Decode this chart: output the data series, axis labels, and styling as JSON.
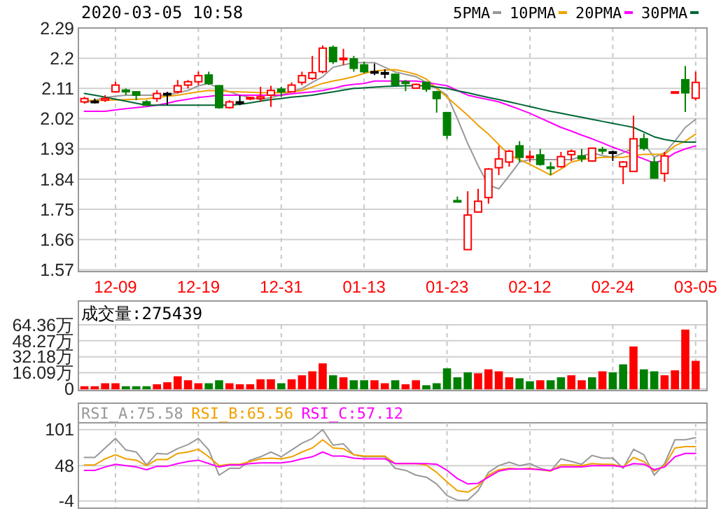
{
  "chart_data": [
    {
      "type": "candlestick",
      "title": "2020-03-05 10:58",
      "categories": [
        null,
        null,
        null,
        "12-09",
        null,
        null,
        null,
        null,
        null,
        null,
        null,
        "12-19",
        null,
        null,
        null,
        null,
        null,
        null,
        null,
        "12-31",
        null,
        null,
        null,
        null,
        null,
        null,
        null,
        "01-13",
        null,
        null,
        null,
        null,
        null,
        null,
        null,
        "01-23",
        null,
        null,
        null,
        null,
        null,
        null,
        null,
        "02-12",
        null,
        null,
        null,
        null,
        null,
        null,
        null,
        "02-24",
        null,
        null,
        null,
        null,
        null,
        null,
        null,
        "03-05"
      ],
      "ohlc": [
        [
          2.07,
          2.085,
          2.065,
          2.08
        ],
        [
          2.072,
          2.08,
          2.065,
          2.072
        ],
        [
          2.075,
          2.09,
          2.07,
          2.08
        ],
        [
          2.1,
          2.13,
          2.097,
          2.12
        ],
        [
          2.105,
          2.11,
          2.09,
          2.1
        ],
        [
          2.1,
          2.1,
          2.075,
          2.09
        ],
        [
          2.07,
          2.075,
          2.06,
          2.06
        ],
        [
          2.08,
          2.105,
          2.07,
          2.095
        ],
        [
          2.095,
          2.1,
          2.06,
          2.095
        ],
        [
          2.1,
          2.135,
          2.095,
          2.118
        ],
        [
          2.12,
          2.135,
          2.11,
          2.13
        ],
        [
          2.13,
          2.16,
          2.12,
          2.148
        ],
        [
          2.15,
          2.16,
          2.12,
          2.125
        ],
        [
          2.118,
          2.12,
          2.05,
          2.053
        ],
        [
          2.053,
          2.075,
          2.05,
          2.07
        ],
        [
          2.07,
          2.09,
          2.06,
          2.07
        ],
        [
          2.08,
          2.085,
          2.075,
          2.083
        ],
        [
          2.08,
          2.115,
          2.07,
          2.085
        ],
        [
          2.09,
          2.118,
          2.055,
          2.104
        ],
        [
          2.108,
          2.115,
          2.085,
          2.1
        ],
        [
          2.1,
          2.128,
          2.098,
          2.12
        ],
        [
          2.128,
          2.16,
          2.12,
          2.148
        ],
        [
          2.14,
          2.207,
          2.135,
          2.157
        ],
        [
          2.16,
          2.238,
          2.155,
          2.23
        ],
        [
          2.232,
          2.238,
          2.183,
          2.19
        ],
        [
          2.198,
          2.228,
          2.18,
          2.2
        ],
        [
          2.198,
          2.207,
          2.16,
          2.17
        ],
        [
          2.18,
          2.19,
          2.155,
          2.16
        ],
        [
          2.16,
          2.184,
          2.15,
          2.16
        ],
        [
          2.157,
          2.167,
          2.14,
          2.157
        ],
        [
          2.152,
          2.155,
          2.12,
          2.121
        ],
        [
          2.13,
          2.135,
          2.102,
          2.125
        ],
        [
          2.111,
          2.125,
          2.11,
          2.122
        ],
        [
          2.128,
          2.13,
          2.1,
          2.108
        ],
        [
          2.1,
          2.103,
          2.038,
          2.08
        ],
        [
          2.038,
          2.04,
          1.96,
          1.971
        ],
        [
          1.776,
          1.788,
          1.773,
          1.774
        ],
        [
          1.63,
          1.804,
          1.629,
          1.733
        ],
        [
          1.742,
          1.811,
          1.74,
          1.774
        ],
        [
          1.785,
          1.873,
          1.767,
          1.87
        ],
        [
          1.874,
          1.939,
          1.852,
          1.9
        ],
        [
          1.891,
          1.927,
          1.877,
          1.923
        ],
        [
          1.939,
          1.953,
          1.891,
          1.905
        ],
        [
          1.905,
          1.925,
          1.891,
          1.908
        ],
        [
          1.912,
          1.93,
          1.88,
          1.884
        ],
        [
          1.876,
          1.891,
          1.852,
          1.874
        ],
        [
          1.877,
          1.921,
          1.874,
          1.907
        ],
        [
          1.913,
          1.928,
          1.894,
          1.923
        ],
        [
          1.909,
          1.93,
          1.891,
          1.901
        ],
        [
          1.894,
          1.934,
          1.892,
          1.932
        ],
        [
          1.928,
          1.936,
          1.914,
          1.925
        ],
        [
          1.921,
          1.925,
          1.894,
          1.921
        ],
        [
          1.877,
          1.894,
          1.825,
          1.891
        ],
        [
          1.863,
          2.029,
          1.863,
          1.96
        ],
        [
          1.96,
          1.976,
          1.925,
          1.932
        ],
        [
          1.891,
          1.905,
          1.843,
          1.843
        ],
        [
          1.857,
          1.921,
          1.832,
          1.909
        ],
        [
          2.1,
          2.1,
          2.1,
          2.1
        ],
        [
          2.136,
          2.177,
          2.04,
          2.097
        ],
        [
          2.081,
          2.16,
          2.074,
          2.128
        ]
      ],
      "colors": [
        "#ff0000",
        "#000000",
        "#ff0000",
        "#ff0000",
        "#008000",
        "#008000",
        "#008000",
        "#ff0000",
        "#000000",
        "#ff0000",
        "#ff0000",
        "#ff0000",
        "#008000",
        "#008000",
        "#ff0000",
        "#000000",
        "#ff0000",
        "#ff0000",
        "#ff0000",
        "#008000",
        "#ff0000",
        "#ff0000",
        "#ff0000",
        "#ff0000",
        "#008000",
        "#ff0000",
        "#008000",
        "#008000",
        "#000000",
        "#000000",
        "#008000",
        "#008000",
        "#ff0000",
        "#008000",
        "#008000",
        "#008000",
        "#008000",
        "#ff0000",
        "#ff0000",
        "#ff0000",
        "#ff0000",
        "#ff0000",
        "#008000",
        "#ff0000",
        "#008000",
        "#008000",
        "#ff0000",
        "#ff0000",
        "#008000",
        "#ff0000",
        "#008000",
        "#000000",
        "#ff0000",
        "#ff0000",
        "#008000",
        "#008000",
        "#ff0000",
        "#ff0000",
        "#008000",
        "#ff0000"
      ],
      "series": [
        {
          "name": "5PMA",
          "type": "line",
          "color": "#999999",
          "values": [
            2.067,
            2.075,
            2.083,
            2.087,
            2.09,
            2.09,
            2.09,
            2.09,
            2.09,
            2.097,
            2.104,
            2.118,
            2.125,
            2.11,
            2.1,
            2.09,
            2.083,
            2.077,
            2.083,
            2.09,
            2.1,
            2.11,
            2.128,
            2.145,
            2.173,
            2.18,
            2.187,
            2.187,
            2.187,
            2.173,
            2.159,
            2.152,
            2.145,
            2.128,
            2.11,
            2.09,
            2.02,
            1.946,
            1.88,
            1.822,
            1.811,
            1.85,
            1.891,
            1.898,
            1.898,
            1.898,
            1.898,
            1.898,
            1.908,
            1.918,
            1.91,
            1.905,
            1.918,
            1.932,
            1.946,
            1.905,
            1.918,
            1.953,
            1.994,
            2.018
          ]
        },
        {
          "name": "10PMA",
          "type": "line",
          "color": "#f0a000",
          "values": [
            2.073,
            2.074,
            2.075,
            2.076,
            2.077,
            2.078,
            2.079,
            2.083,
            2.087,
            2.09,
            2.095,
            2.1,
            2.104,
            2.103,
            2.101,
            2.1,
            2.099,
            2.097,
            2.097,
            2.097,
            2.1,
            2.104,
            2.114,
            2.125,
            2.132,
            2.138,
            2.145,
            2.155,
            2.162,
            2.165,
            2.166,
            2.16,
            2.152,
            2.138,
            2.11,
            2.084,
            2.057,
            2.03,
            2.0,
            1.974,
            1.943,
            1.912,
            1.898,
            1.884,
            1.868,
            1.852,
            1.87,
            1.891,
            1.898,
            1.902,
            1.905,
            1.905,
            1.905,
            1.91,
            1.914,
            1.914,
            1.914,
            1.939,
            1.953,
            1.974
          ]
        },
        {
          "name": "20PMA",
          "type": "line",
          "color": "#ff00ff",
          "values": [
            2.042,
            2.042,
            2.042,
            2.046,
            2.05,
            2.053,
            2.056,
            2.06,
            2.066,
            2.073,
            2.078,
            2.083,
            2.086,
            2.09,
            2.09,
            2.09,
            2.09,
            2.09,
            2.09,
            2.09,
            2.094,
            2.097,
            2.1,
            2.104,
            2.11,
            2.118,
            2.122,
            2.125,
            2.132,
            2.132,
            2.132,
            2.132,
            2.132,
            2.128,
            2.123,
            2.118,
            2.104,
            2.09,
            2.083,
            2.077,
            2.07,
            2.059,
            2.048,
            2.036,
            2.022,
            2.008,
            1.994,
            1.983,
            1.971,
            1.96,
            1.948,
            1.935,
            1.924,
            1.912,
            1.9,
            1.888,
            1.898,
            1.918,
            1.93,
            1.939
          ]
        },
        {
          "name": "30PMA",
          "type": "line",
          "color": "#006633",
          "values": [
            2.095,
            2.09,
            2.084,
            2.078,
            2.072,
            2.066,
            2.06,
            2.06,
            2.06,
            2.06,
            2.06,
            2.06,
            2.06,
            2.06,
            2.06,
            2.063,
            2.067,
            2.072,
            2.077,
            2.08,
            2.084,
            2.087,
            2.09,
            2.095,
            2.1,
            2.105,
            2.11,
            2.112,
            2.114,
            2.116,
            2.117,
            2.118,
            2.118,
            2.118,
            2.114,
            2.11,
            2.103,
            2.097,
            2.09,
            2.083,
            2.077,
            2.07,
            2.063,
            2.056,
            2.049,
            2.042,
            2.036,
            2.03,
            2.024,
            2.018,
            2.012,
            2.006,
            2.0,
            1.994,
            1.98,
            1.966,
            1.958,
            1.953,
            1.95,
            1.95
          ]
        }
      ],
      "ylim": [
        1.57,
        2.29
      ],
      "yticks": [
        1.57,
        1.66,
        1.75,
        1.84,
        1.93,
        2.02,
        2.11,
        2.2,
        2.29
      ],
      "grid": true,
      "legend": "top right"
    },
    {
      "type": "bar",
      "title": "成交量:275439",
      "categories": [
        null,
        null,
        null,
        null,
        null,
        null,
        null,
        null,
        null,
        null,
        null,
        null,
        null,
        null,
        null,
        null,
        null,
        null,
        null,
        null,
        null,
        null,
        null,
        null,
        null,
        null,
        null,
        null,
        null,
        null,
        null,
        null,
        null,
        null,
        null,
        null,
        null,
        null,
        null,
        null,
        null,
        null,
        null,
        null,
        null,
        null,
        null,
        null,
        null,
        null,
        null,
        null,
        null,
        null,
        null,
        null,
        null,
        null,
        null,
        null
      ],
      "values": [
        2,
        2,
        5,
        5,
        2,
        2,
        2,
        4,
        6,
        12,
        8,
        5,
        5,
        8,
        5,
        4,
        4,
        9,
        9,
        5,
        9,
        13,
        17,
        25,
        13,
        11,
        8,
        8,
        8,
        5,
        8,
        4,
        8,
        3,
        5,
        20,
        11,
        16,
        15,
        19,
        17,
        11,
        10,
        7,
        8,
        8,
        11,
        13,
        8,
        11,
        17,
        16,
        24,
        42,
        19,
        17,
        13,
        18,
        59,
        27.54
      ],
      "colors": [
        "#ff0000",
        "#ff0000",
        "#ff0000",
        "#ff0000",
        "#008000",
        "#008000",
        "#008000",
        "#ff0000",
        "#ff0000",
        "#ff0000",
        "#ff0000",
        "#ff0000",
        "#008000",
        "#008000",
        "#ff0000",
        "#ff0000",
        "#ff0000",
        "#ff0000",
        "#ff0000",
        "#008000",
        "#ff0000",
        "#ff0000",
        "#ff0000",
        "#ff0000",
        "#008000",
        "#ff0000",
        "#008000",
        "#008000",
        "#ff0000",
        "#ff0000",
        "#008000",
        "#ff0000",
        "#ff0000",
        "#008000",
        "#008000",
        "#008000",
        "#008000",
        "#008000",
        "#ff0000",
        "#ff0000",
        "#ff0000",
        "#ff0000",
        "#008000",
        "#008000",
        "#ff0000",
        "#008000",
        "#008000",
        "#ff0000",
        "#ff0000",
        "#008000",
        "#ff0000",
        "#008000",
        "#008000",
        "#ff0000",
        "#008000",
        "#008000",
        "#ff0000",
        "#ff0000",
        "#ff0000",
        "#ff0000"
      ],
      "ylim": [
        0,
        64.36
      ],
      "yticks": [
        0,
        {
          "value": 16.09,
          "label": "16.09万"
        },
        {
          "value": 32.18,
          "label": "32.18万"
        },
        {
          "value": 48.27,
          "label": "48.27万"
        },
        {
          "value": 64.36,
          "label": "64.36万"
        }
      ],
      "grid": true,
      "tick_labels": "y"
    },
    {
      "type": "line",
      "categories": [
        null,
        null,
        null,
        null,
        null,
        null,
        null,
        null,
        null,
        null,
        null,
        null,
        null,
        null,
        null,
        null,
        null,
        null,
        null,
        null,
        null,
        null,
        null,
        null,
        null,
        null,
        null,
        null,
        null,
        null,
        null,
        null,
        null,
        null,
        null,
        null,
        null,
        null,
        null,
        null,
        null,
        null,
        null,
        null,
        null,
        null,
        null,
        null,
        null,
        null,
        null,
        null,
        null,
        null,
        null,
        null,
        null,
        null,
        null,
        null
      ],
      "series": [
        {
          "name": "RSI_A:75.58",
          "color": "#999999",
          "values": [
            60,
            60,
            74,
            88,
            71,
            68,
            49,
            66,
            65,
            73,
            79,
            88,
            71,
            34,
            44,
            44,
            56,
            61,
            68,
            61,
            71,
            81,
            88,
            101,
            78,
            80,
            64,
            61,
            61,
            61,
            44,
            41,
            34,
            31,
            21,
            4,
            -3,
            -3,
            11,
            38,
            48,
            53,
            48,
            51,
            44,
            40,
            58,
            54,
            50,
            63,
            59,
            59,
            44,
            72,
            64,
            34,
            51,
            86,
            86,
            89
          ]
        },
        {
          "name": "RSI_B:65.56",
          "color": "#f0a000",
          "values": [
            49,
            49,
            58,
            64,
            58,
            56,
            48,
            57,
            57,
            66,
            68,
            72,
            61,
            48,
            50,
            50,
            54,
            58,
            59,
            58,
            61,
            68,
            74,
            86,
            74,
            73,
            64,
            62,
            62,
            62,
            51,
            51,
            51,
            49,
            38,
            24,
            11,
            9,
            18,
            34,
            42,
            44,
            43,
            44,
            42,
            40,
            49,
            49,
            48,
            51,
            50,
            50,
            46,
            60,
            54,
            40,
            48,
            74,
            76,
            76
          ]
        },
        {
          "name": "RSI_C:57.12",
          "color": "#ff00ff",
          "values": [
            41,
            41,
            46,
            50,
            48,
            46,
            42,
            47,
            47,
            51,
            54,
            56,
            51,
            46,
            49,
            49,
            51,
            52,
            52,
            52,
            54,
            58,
            61,
            68,
            62,
            62,
            59,
            58,
            58,
            58,
            51,
            51,
            51,
            51,
            50,
            41,
            29,
            21,
            22,
            31,
            40,
            43,
            43,
            43,
            42,
            41,
            46,
            46,
            46,
            48,
            48,
            48,
            46,
            51,
            50,
            42,
            46,
            61,
            66,
            66
          ]
        }
      ],
      "ylim": [
        -12,
        111
      ],
      "yticks": [
        -4,
        48,
        101
      ],
      "grid": true,
      "legend": "top left",
      "tick_labels": "y"
    }
  ]
}
